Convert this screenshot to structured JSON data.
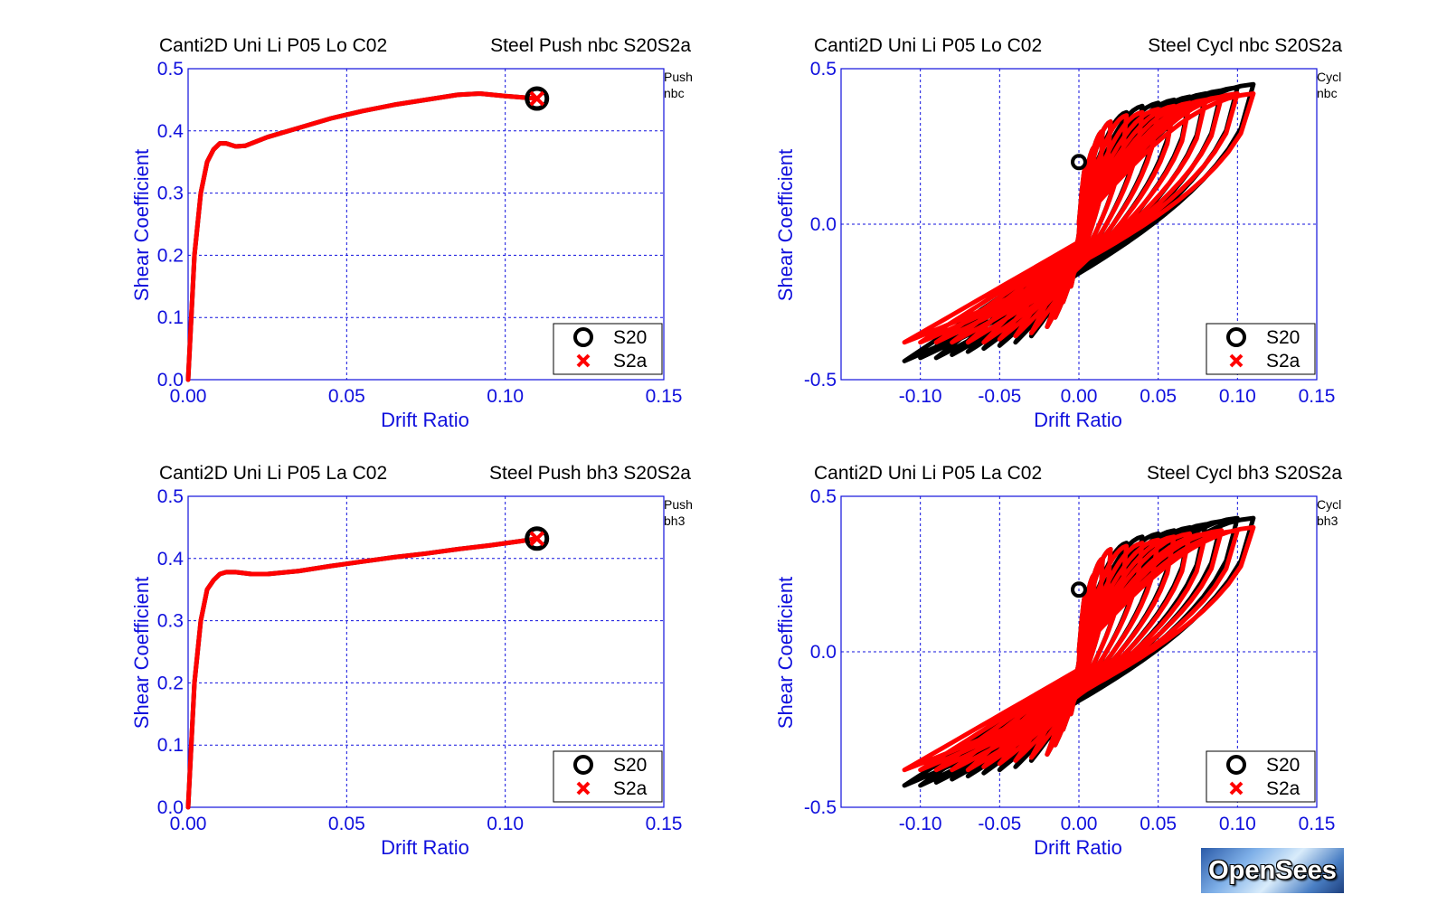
{
  "logo_text": "OpenSees",
  "colors": {
    "axis": "#1010dd",
    "series_S20": "#000000",
    "series_S2a": "#ff0000"
  },
  "chart_data": [
    {
      "type": "line",
      "title_left": "Canti2D Uni Li P05 Lo C02",
      "title_right": "Steel Push nbc S20S2a",
      "side_note": [
        "Push",
        "nbc"
      ],
      "xlabel": "Drift Ratio",
      "ylabel": "Shear Coefficient",
      "xlim": [
        0,
        0.15
      ],
      "ylim": [
        0,
        0.5
      ],
      "xticks": [
        "0.00",
        "0.05",
        "0.10",
        "0.15"
      ],
      "yticks": [
        "0.0",
        "0.1",
        "0.2",
        "0.3",
        "0.4",
        "0.5"
      ],
      "grid": true,
      "legend_position": "bottom-right",
      "series": [
        {
          "name": "S20",
          "marker": "circle",
          "color": "#000000",
          "x": [
            0,
            0.002,
            0.004,
            0.006,
            0.008,
            0.01,
            0.012,
            0.015,
            0.018,
            0.025,
            0.035,
            0.045,
            0.055,
            0.065,
            0.075,
            0.085,
            0.092,
            0.1,
            0.11
          ],
          "y": [
            0,
            0.2,
            0.3,
            0.35,
            0.37,
            0.38,
            0.38,
            0.375,
            0.376,
            0.39,
            0.405,
            0.42,
            0.432,
            0.442,
            0.45,
            0.458,
            0.46,
            0.456,
            0.452
          ]
        },
        {
          "name": "S2a",
          "marker": "x",
          "color": "#ff0000",
          "x": [
            0,
            0.002,
            0.004,
            0.006,
            0.008,
            0.01,
            0.012,
            0.015,
            0.018,
            0.025,
            0.035,
            0.045,
            0.055,
            0.065,
            0.075,
            0.085,
            0.092,
            0.1,
            0.11
          ],
          "y": [
            0,
            0.2,
            0.3,
            0.35,
            0.37,
            0.38,
            0.38,
            0.375,
            0.376,
            0.39,
            0.405,
            0.42,
            0.432,
            0.442,
            0.45,
            0.458,
            0.46,
            0.456,
            0.452
          ]
        }
      ]
    },
    {
      "type": "line",
      "title_left": "Canti2D Uni Li P05 Lo C02",
      "title_right": "Steel Cycl nbc S20S2a",
      "side_note": [
        "Cycl",
        "nbc"
      ],
      "xlabel": "Drift Ratio",
      "ylabel": "Shear Coefficient",
      "xlim": [
        -0.15,
        0.15
      ],
      "ylim": [
        -0.5,
        0.5
      ],
      "xticks": [
        "-0.10",
        "-0.05",
        "0.00",
        "0.05",
        "0.10",
        "0.15"
      ],
      "yticks": [
        "-0.5",
        "0.0",
        "0.5"
      ],
      "grid": true,
      "legend_position": "bottom-right",
      "series": [
        {
          "name": "S20",
          "marker": "circle",
          "color": "#000000",
          "amplitudes": [
            0.005,
            0.01,
            0.015,
            0.02,
            0.03,
            0.04,
            0.05,
            0.06,
            0.07,
            0.08,
            0.09,
            0.1,
            0.11
          ],
          "peak_positive": [
            0.2,
            0.25,
            0.3,
            0.33,
            0.36,
            0.38,
            0.39,
            0.4,
            0.41,
            0.42,
            0.43,
            0.44,
            0.45
          ],
          "peak_negative": [
            -0.2,
            -0.25,
            -0.3,
            -0.33,
            -0.36,
            -0.38,
            -0.39,
            -0.4,
            -0.41,
            -0.42,
            -0.43,
            -0.43,
            -0.44
          ]
        },
        {
          "name": "S2a",
          "marker": "x",
          "color": "#ff0000",
          "amplitudes": [
            0.005,
            0.01,
            0.015,
            0.02,
            0.03,
            0.04,
            0.05,
            0.06,
            0.07,
            0.08,
            0.09,
            0.1,
            0.11
          ],
          "peak_positive": [
            0.2,
            0.25,
            0.3,
            0.33,
            0.35,
            0.36,
            0.37,
            0.38,
            0.39,
            0.4,
            0.41,
            0.42,
            0.42
          ],
          "peak_negative": [
            -0.2,
            -0.25,
            -0.3,
            -0.33,
            -0.35,
            -0.36,
            -0.37,
            -0.38,
            -0.38,
            -0.38,
            -0.38,
            -0.38,
            -0.38
          ]
        }
      ]
    },
    {
      "type": "line",
      "title_left": "Canti2D Uni Li P05 La C02",
      "title_right": "Steel Push bh3 S20S2a",
      "side_note": [
        "Push",
        "bh3"
      ],
      "xlabel": "Drift Ratio",
      "ylabel": "Shear Coefficient",
      "xlim": [
        0,
        0.15
      ],
      "ylim": [
        0,
        0.5
      ],
      "xticks": [
        "0.00",
        "0.05",
        "0.10",
        "0.15"
      ],
      "yticks": [
        "0.0",
        "0.1",
        "0.2",
        "0.3",
        "0.4",
        "0.5"
      ],
      "grid": true,
      "legend_position": "bottom-right",
      "series": [
        {
          "name": "S20",
          "marker": "circle",
          "color": "#000000",
          "x": [
            0,
            0.002,
            0.004,
            0.006,
            0.008,
            0.01,
            0.012,
            0.015,
            0.02,
            0.025,
            0.035,
            0.045,
            0.055,
            0.065,
            0.075,
            0.085,
            0.095,
            0.105,
            0.11
          ],
          "y": [
            0,
            0.2,
            0.3,
            0.35,
            0.365,
            0.375,
            0.378,
            0.378,
            0.375,
            0.375,
            0.38,
            0.388,
            0.395,
            0.402,
            0.408,
            0.415,
            0.421,
            0.428,
            0.432
          ]
        },
        {
          "name": "S2a",
          "marker": "x",
          "color": "#ff0000",
          "x": [
            0,
            0.002,
            0.004,
            0.006,
            0.008,
            0.01,
            0.012,
            0.015,
            0.02,
            0.025,
            0.035,
            0.045,
            0.055,
            0.065,
            0.075,
            0.085,
            0.095,
            0.105,
            0.11
          ],
          "y": [
            0,
            0.2,
            0.3,
            0.35,
            0.365,
            0.375,
            0.378,
            0.378,
            0.375,
            0.375,
            0.38,
            0.388,
            0.395,
            0.402,
            0.408,
            0.415,
            0.421,
            0.428,
            0.432
          ]
        }
      ]
    },
    {
      "type": "line",
      "title_left": "Canti2D Uni Li P05 La C02",
      "title_right": "Steel Cycl bh3 S20S2a",
      "side_note": [
        "Cycl",
        "bh3"
      ],
      "xlabel": "Drift Ratio",
      "ylabel": "Shear Coefficient",
      "xlim": [
        -0.15,
        0.15
      ],
      "ylim": [
        -0.5,
        0.5
      ],
      "xticks": [
        "-0.10",
        "-0.05",
        "0.00",
        "0.05",
        "0.10",
        "0.15"
      ],
      "yticks": [
        "-0.5",
        "0.0",
        "0.5"
      ],
      "grid": true,
      "legend_position": "bottom-right",
      "series": [
        {
          "name": "S20",
          "marker": "circle",
          "color": "#000000",
          "amplitudes": [
            0.005,
            0.01,
            0.015,
            0.02,
            0.03,
            0.04,
            0.05,
            0.06,
            0.07,
            0.08,
            0.09,
            0.1,
            0.11
          ],
          "peak_positive": [
            0.2,
            0.25,
            0.3,
            0.33,
            0.35,
            0.37,
            0.38,
            0.39,
            0.4,
            0.41,
            0.42,
            0.43,
            0.43
          ],
          "peak_negative": [
            -0.2,
            -0.25,
            -0.3,
            -0.33,
            -0.35,
            -0.37,
            -0.38,
            -0.39,
            -0.4,
            -0.41,
            -0.42,
            -0.43,
            -0.43
          ]
        },
        {
          "name": "S2a",
          "marker": "x",
          "color": "#ff0000",
          "amplitudes": [
            0.005,
            0.01,
            0.015,
            0.02,
            0.03,
            0.04,
            0.05,
            0.06,
            0.07,
            0.08,
            0.09,
            0.1,
            0.11
          ],
          "peak_positive": [
            0.2,
            0.25,
            0.3,
            0.33,
            0.34,
            0.35,
            0.36,
            0.37,
            0.38,
            0.38,
            0.39,
            0.39,
            0.4
          ],
          "peak_negative": [
            -0.2,
            -0.25,
            -0.3,
            -0.33,
            -0.34,
            -0.35,
            -0.36,
            -0.37,
            -0.38,
            -0.38,
            -0.38,
            -0.38,
            -0.38
          ]
        }
      ]
    }
  ]
}
